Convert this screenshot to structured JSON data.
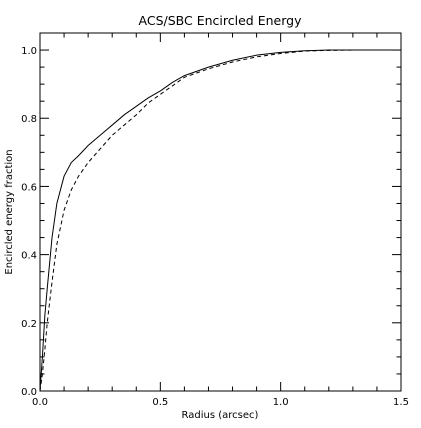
{
  "chart_data": {
    "type": "line",
    "title": "ACS/SBC Encircled Energy",
    "xlabel": "Radius (arcsec)",
    "ylabel": "Encircled energy fraction",
    "xlim": [
      0,
      1.5
    ],
    "ylim": [
      0,
      1.05
    ],
    "x_ticks": [
      0,
      0.5,
      1,
      1.5
    ],
    "x_tick_labels": [
      "0.0",
      "0.5",
      "1.0",
      "1.5"
    ],
    "y_ticks": [
      0,
      0.2,
      0.4,
      0.6,
      0.8,
      1
    ],
    "y_tick_labels": [
      "0.0",
      "0.2",
      "0.4",
      "0.6",
      "0.8",
      "1.0"
    ],
    "grid": false,
    "legend": "none",
    "series": [
      {
        "style": "solid",
        "x": [
          0.0,
          0.01,
          0.02,
          0.03,
          0.05,
          0.07,
          0.1,
          0.13,
          0.16,
          0.2,
          0.25,
          0.3,
          0.35,
          0.4,
          0.45,
          0.5,
          0.55,
          0.6,
          0.7,
          0.8,
          0.9,
          1.0,
          1.1,
          1.2,
          1.3,
          1.5
        ],
        "y": [
          0.0,
          0.1,
          0.22,
          0.3,
          0.45,
          0.55,
          0.63,
          0.67,
          0.69,
          0.72,
          0.75,
          0.78,
          0.81,
          0.835,
          0.86,
          0.88,
          0.905,
          0.925,
          0.95,
          0.97,
          0.985,
          0.993,
          0.998,
          1.0,
          1.0,
          1.0
        ]
      },
      {
        "style": "dashed",
        "x": [
          0.0,
          0.01,
          0.02,
          0.03,
          0.05,
          0.07,
          0.1,
          0.13,
          0.16,
          0.2,
          0.25,
          0.3,
          0.35,
          0.4,
          0.45,
          0.5,
          0.55,
          0.6,
          0.7,
          0.8,
          0.9,
          1.0,
          1.1,
          1.2,
          1.3,
          1.5
        ],
        "y": [
          0.0,
          0.05,
          0.12,
          0.2,
          0.32,
          0.43,
          0.53,
          0.59,
          0.63,
          0.67,
          0.71,
          0.75,
          0.78,
          0.81,
          0.845,
          0.87,
          0.895,
          0.92,
          0.945,
          0.965,
          0.98,
          0.99,
          0.997,
          0.999,
          1.0,
          1.0
        ]
      }
    ]
  }
}
